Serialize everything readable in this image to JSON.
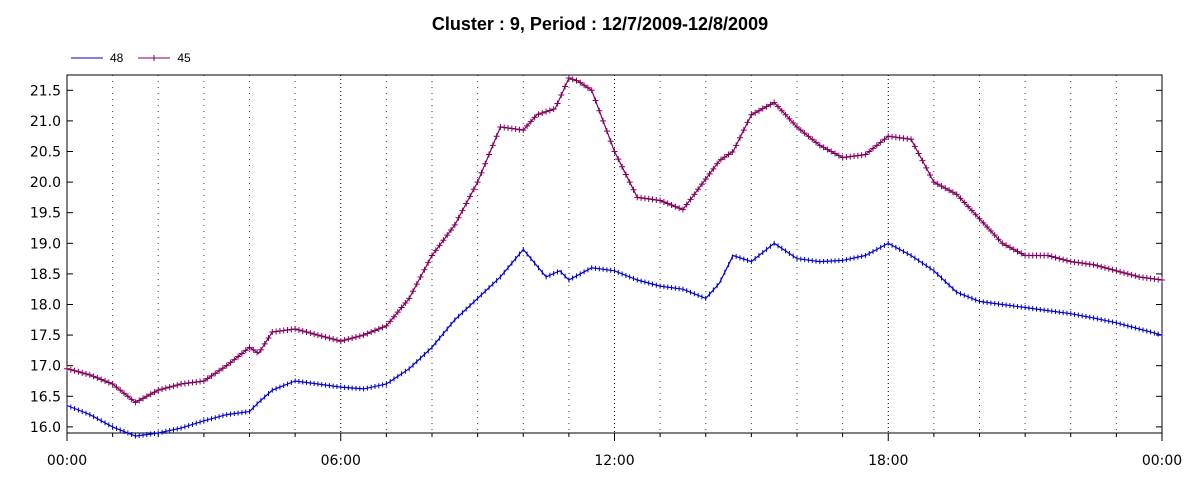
{
  "chart_data": {
    "type": "line",
    "title": "Cluster : 9, Period : 12/7/2009-12/8/2009",
    "xlabel": "",
    "ylabel": "",
    "x_unit": "hours",
    "xlim": [
      0,
      24
    ],
    "ylim": [
      15.9,
      21.75
    ],
    "x_tick_values": [
      0,
      6,
      12,
      18,
      24
    ],
    "x_tick_labels": [
      "00:00",
      "06:00",
      "12:00",
      "18:00",
      "00:00"
    ],
    "y_ticks": [
      "16.0",
      "16.5",
      "17.0",
      "17.5",
      "18.0",
      "18.5",
      "19.0",
      "19.5",
      "20.0",
      "20.5",
      "21.0",
      "21.5"
    ],
    "grid": "vertical dotted every hour",
    "legend_position": "top-left",
    "series": [
      {
        "name": "48",
        "color": "#0000cc",
        "marker": "tick",
        "x": [
          0,
          0.5,
          1.0,
          1.5,
          2.0,
          2.5,
          3.0,
          3.5,
          4.0,
          4.2,
          4.5,
          5.0,
          5.5,
          6.0,
          6.5,
          7.0,
          7.5,
          8.0,
          8.5,
          9.0,
          9.5,
          10.0,
          10.5,
          10.8,
          11.0,
          11.5,
          12.0,
          12.5,
          13.0,
          13.5,
          14.0,
          14.3,
          14.6,
          15.0,
          15.5,
          16.0,
          16.5,
          17.0,
          17.5,
          18.0,
          18.5,
          19.0,
          19.5,
          20.0,
          20.5,
          21.0,
          21.5,
          22.0,
          22.5,
          23.0,
          23.5,
          24.0
        ],
        "values": [
          16.35,
          16.2,
          16.0,
          15.85,
          15.9,
          15.98,
          16.1,
          16.2,
          16.25,
          16.4,
          16.6,
          16.75,
          16.7,
          16.65,
          16.62,
          16.7,
          16.95,
          17.3,
          17.75,
          18.1,
          18.45,
          18.9,
          18.45,
          18.55,
          18.4,
          18.6,
          18.55,
          18.4,
          18.3,
          18.25,
          18.1,
          18.35,
          18.8,
          18.7,
          19.0,
          18.75,
          18.7,
          18.72,
          18.8,
          19.0,
          18.8,
          18.55,
          18.2,
          18.05,
          18.0,
          17.95,
          17.9,
          17.85,
          17.78,
          17.7,
          17.6,
          17.5
        ]
      },
      {
        "name": "45",
        "color": "#800060",
        "marker": "plus",
        "x": [
          0,
          0.5,
          1.0,
          1.5,
          2.0,
          2.5,
          3.0,
          3.5,
          4.0,
          4.2,
          4.5,
          5.0,
          5.5,
          6.0,
          6.5,
          7.0,
          7.5,
          8.0,
          8.5,
          9.0,
          9.5,
          10.0,
          10.3,
          10.7,
          11.0,
          11.2,
          11.5,
          12.0,
          12.5,
          13.0,
          13.5,
          14.0,
          14.3,
          14.6,
          15.0,
          15.5,
          16.0,
          16.5,
          17.0,
          17.5,
          18.0,
          18.5,
          19.0,
          19.5,
          20.0,
          20.5,
          21.0,
          21.5,
          22.0,
          22.5,
          23.0,
          23.5,
          24.0
        ],
        "values": [
          16.95,
          16.85,
          16.7,
          16.4,
          16.6,
          16.7,
          16.75,
          17.0,
          17.3,
          17.2,
          17.55,
          17.6,
          17.5,
          17.4,
          17.5,
          17.65,
          18.1,
          18.8,
          19.3,
          20.0,
          20.9,
          20.85,
          21.1,
          21.2,
          21.7,
          21.65,
          21.5,
          20.5,
          19.75,
          19.7,
          19.55,
          20.05,
          20.35,
          20.5,
          21.1,
          21.3,
          20.9,
          20.6,
          20.4,
          20.45,
          20.75,
          20.7,
          20.0,
          19.8,
          19.4,
          19.0,
          18.8,
          18.8,
          18.7,
          18.65,
          18.55,
          18.45,
          18.4
        ]
      }
    ]
  }
}
